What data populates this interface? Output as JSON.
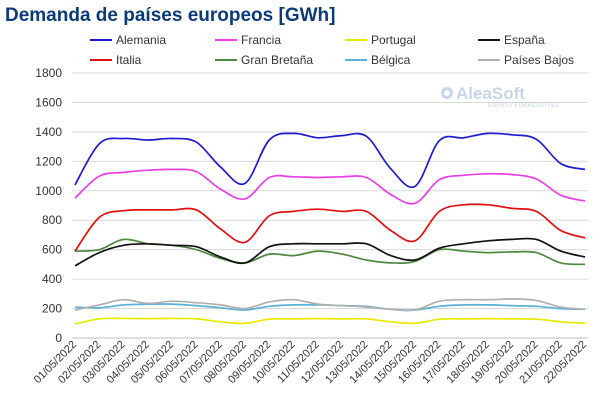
{
  "chart_data": {
    "type": "line",
    "title": "Demanda de países europeos [GWh]",
    "xlabel": "",
    "ylabel": "",
    "ylim": [
      0,
      1800
    ],
    "yticks": [
      0,
      200,
      400,
      600,
      800,
      1000,
      1200,
      1400,
      1600,
      1800
    ],
    "grid": true,
    "legend_position": "top",
    "x": [
      "01/05/2022",
      "02/05/2022",
      "03/05/2022",
      "04/05/2022",
      "05/05/2022",
      "06/05/2022",
      "07/05/2022",
      "08/05/2022",
      "09/05/2022",
      "10/05/2022",
      "11/05/2022",
      "12/05/2022",
      "13/05/2022",
      "14/05/2022",
      "15/05/2022",
      "16/05/2022",
      "17/05/2022",
      "18/05/2022",
      "19/05/2022",
      "20/05/2022",
      "21/05/2022",
      "22/05/2022"
    ],
    "series": [
      {
        "name": "Alemania",
        "color": "#1c1ccf",
        "values": [
          1040,
          1320,
          1355,
          1345,
          1355,
          1330,
          1160,
          1050,
          1345,
          1390,
          1360,
          1375,
          1370,
          1150,
          1030,
          1340,
          1360,
          1390,
          1380,
          1350,
          1185,
          1145
        ]
      },
      {
        "name": "Francia",
        "color": "#e83ee8",
        "values": [
          950,
          1100,
          1125,
          1140,
          1145,
          1130,
          1010,
          945,
          1090,
          1095,
          1090,
          1095,
          1090,
          975,
          915,
          1075,
          1105,
          1115,
          1110,
          1080,
          970,
          930
        ]
      },
      {
        "name": "Portugal",
        "color": "#eaea00",
        "values": [
          95,
          130,
          133,
          132,
          133,
          130,
          110,
          100,
          128,
          130,
          132,
          130,
          130,
          110,
          100,
          128,
          130,
          132,
          130,
          128,
          110,
          100
        ]
      },
      {
        "name": "España",
        "color": "#111111",
        "values": [
          490,
          580,
          630,
          640,
          630,
          620,
          550,
          510,
          620,
          640,
          640,
          640,
          640,
          560,
          530,
          610,
          640,
          660,
          670,
          670,
          590,
          550
        ]
      },
      {
        "name": "Italia",
        "color": "#e01010",
        "values": [
          590,
          820,
          865,
          870,
          870,
          870,
          740,
          650,
          830,
          860,
          875,
          860,
          860,
          730,
          660,
          860,
          905,
          905,
          880,
          860,
          730,
          680
        ]
      },
      {
        "name": "Gran Bretaña",
        "color": "#4e8a3e",
        "values": [
          590,
          600,
          670,
          640,
          630,
          600,
          540,
          510,
          570,
          560,
          590,
          570,
          530,
          510,
          520,
          600,
          590,
          580,
          585,
          580,
          510,
          500
        ]
      },
      {
        "name": "Bélgica",
        "color": "#5ab0d6",
        "values": [
          210,
          205,
          225,
          230,
          230,
          220,
          205,
          190,
          215,
          225,
          225,
          220,
          215,
          195,
          190,
          215,
          225,
          225,
          220,
          215,
          200,
          195
        ]
      },
      {
        "name": "Países Bajos",
        "color": "#b0b0b0",
        "values": [
          190,
          225,
          260,
          235,
          250,
          240,
          225,
          200,
          245,
          260,
          230,
          220,
          210,
          195,
          190,
          250,
          260,
          260,
          265,
          255,
          210,
          195
        ]
      }
    ]
  },
  "logo": {
    "name": "AleaSoft",
    "tagline": "ENERGY FORECASTING"
  }
}
